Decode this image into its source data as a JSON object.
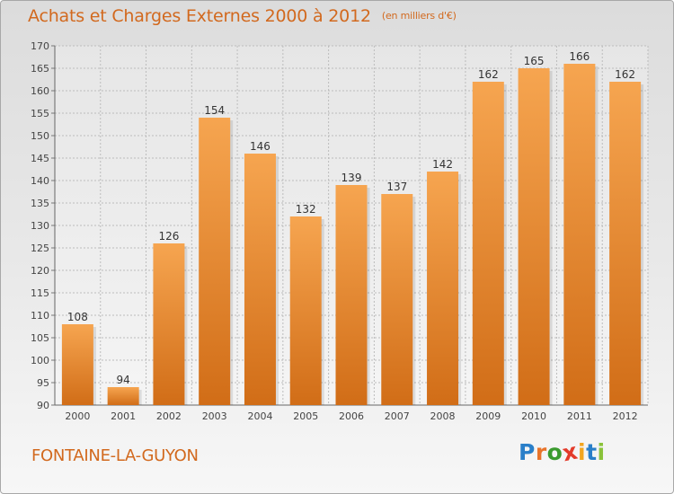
{
  "header": {
    "title": "Achats et Charges Externes 2000 à 2012",
    "subtitle": "(en milliers d'€)"
  },
  "footer": {
    "town": "FONTAINE-LA-GUYON",
    "logo": {
      "letters": [
        "P",
        "r",
        "o",
        "x",
        "i",
        "t",
        "i"
      ],
      "colors": [
        "#2a7fc9",
        "#e8742a",
        "#3a9a2e",
        "#e33b2a",
        "#f2a51f",
        "#2a7fc9",
        "#8ac23a"
      ]
    }
  },
  "colors": {
    "bar_top": "#f6a550",
    "bar_bottom": "#d16d17",
    "text": "#d2691e",
    "grid": "#bcbcbc"
  },
  "chart_data": {
    "type": "bar",
    "title": "Achats et Charges Externes 2000 à 2012",
    "subtitle": "(en milliers d'€)",
    "categories": [
      "2000",
      "2001",
      "2002",
      "2003",
      "2004",
      "2005",
      "2006",
      "2007",
      "2008",
      "2009",
      "2010",
      "2011",
      "2012"
    ],
    "values": [
      108,
      94,
      126,
      154,
      146,
      132,
      139,
      137,
      142,
      162,
      165,
      166,
      162
    ],
    "ylim": [
      90,
      170
    ],
    "yticks": [
      90,
      95,
      100,
      105,
      110,
      115,
      120,
      125,
      130,
      135,
      140,
      145,
      150,
      155,
      160,
      165,
      170
    ],
    "grid": true,
    "data_labels": true
  }
}
